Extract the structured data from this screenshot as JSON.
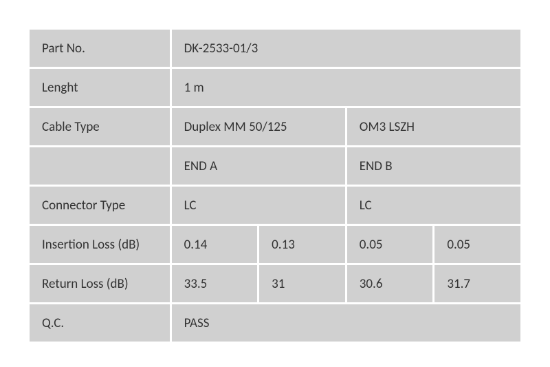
{
  "table": {
    "background_color": "#ffffff",
    "cell_bg_color": "#d0d0d0",
    "cell_spacing": 3,
    "text_color": "#333333",
    "font_size": 19,
    "rows": {
      "part_no": {
        "label": "Part No.",
        "value": "DK-2533-01/3"
      },
      "length": {
        "label": "Lenght",
        "value": "1 m"
      },
      "cable_type": {
        "label": "Cable Type",
        "value1": "Duplex MM 50/125",
        "value2": "OM3 LSZH"
      },
      "ends": {
        "label": "",
        "end_a": "END A",
        "end_b": "END B"
      },
      "connector_type": {
        "label": "Connector Type",
        "a": "LC",
        "b": "LC"
      },
      "insertion_loss": {
        "label": "Insertion Loss (dB)",
        "a1": "0.14",
        "a2": "0.13",
        "b1": "0.05",
        "b2": "0.05"
      },
      "return_loss": {
        "label": "Return Loss (dB)",
        "a1": "33.5",
        "a2": "31",
        "b1": "30.6",
        "b2": "31.7"
      },
      "qc": {
        "label": "Q.C.",
        "value": "PASS"
      }
    }
  }
}
